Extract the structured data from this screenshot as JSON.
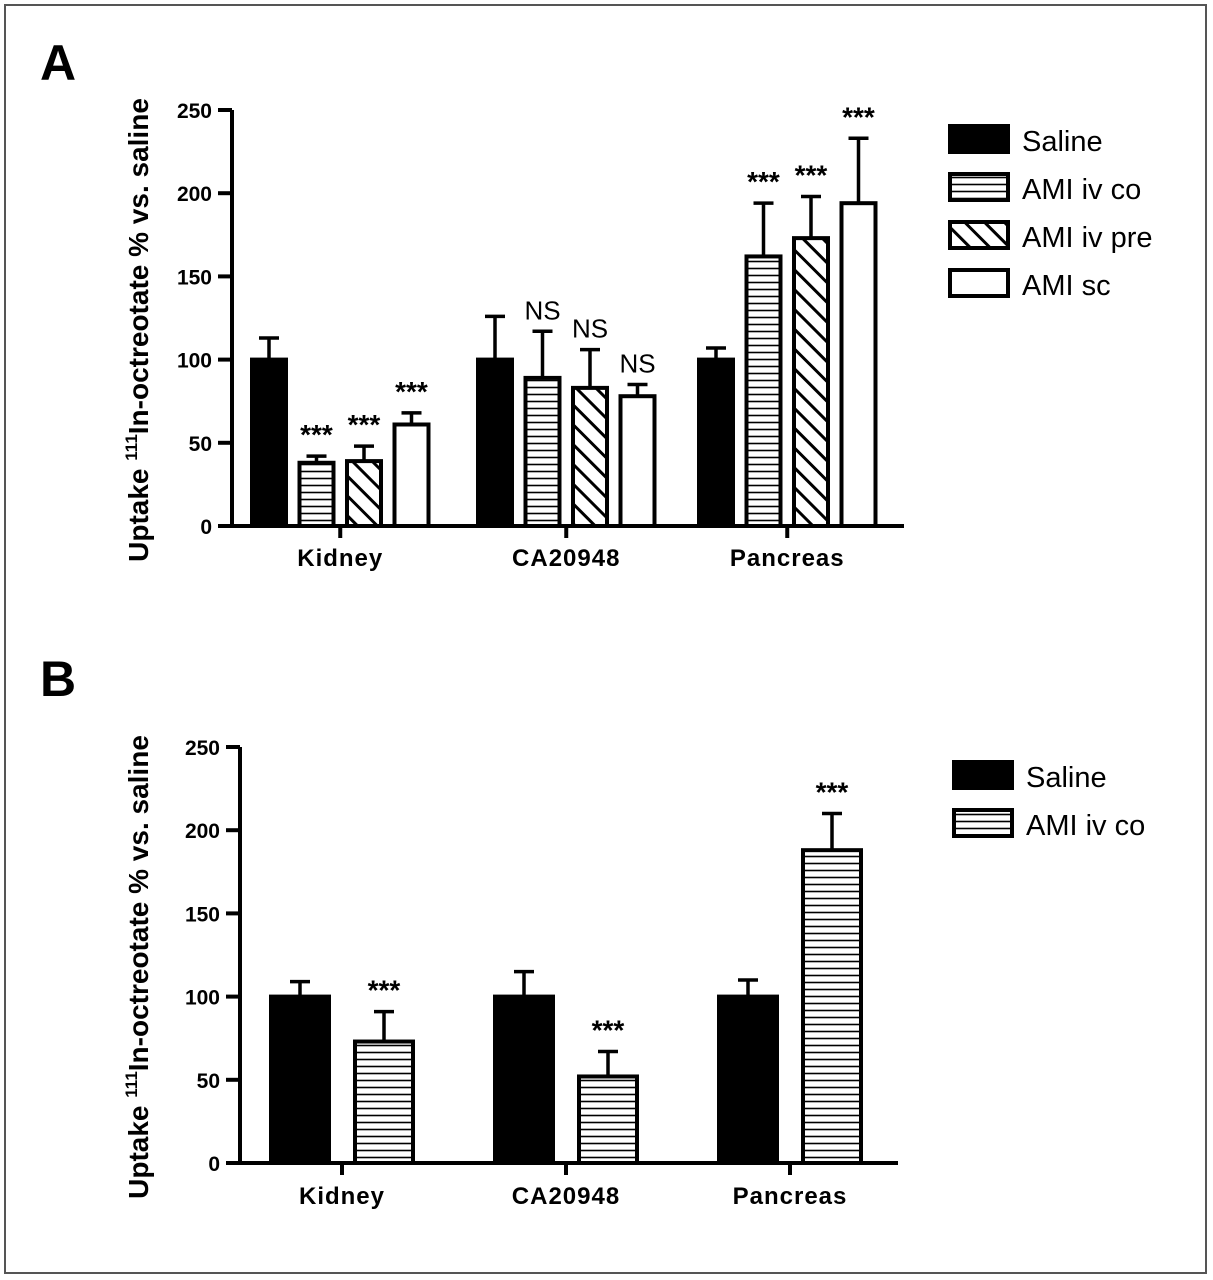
{
  "chart_data": [
    {
      "type": "bar",
      "panel_label": "A",
      "ylabel_prefix": "Uptake ",
      "ylabel_sup": "111",
      "ylabel_main": "In-octreotate % vs. saline",
      "ylim": [
        0,
        250
      ],
      "yticks": [
        "0",
        "50",
        "100",
        "150",
        "200",
        "250"
      ],
      "categories": [
        "Kidney",
        "CA20948",
        "Pancreas"
      ],
      "legend_position": "right",
      "series": [
        {
          "name": "Saline",
          "pattern": "solid",
          "values": [
            100,
            100,
            100
          ],
          "errors": [
            13,
            26,
            7
          ],
          "annotations": [
            "",
            "",
            ""
          ]
        },
        {
          "name": "AMI iv co",
          "pattern": "horizontal-lines",
          "values": [
            38,
            89,
            162
          ],
          "errors": [
            4,
            28,
            32
          ],
          "annotations": [
            "***",
            "NS",
            "***"
          ]
        },
        {
          "name": "AMI iv pre",
          "pattern": "diagonal-lines",
          "values": [
            39,
            83,
            173
          ],
          "errors": [
            9,
            23,
            25
          ],
          "annotations": [
            "***",
            "NS",
            "***"
          ]
        },
        {
          "name": "AMI sc",
          "pattern": "open",
          "values": [
            61,
            78,
            194
          ],
          "errors": [
            7,
            7,
            39
          ],
          "annotations": [
            "***",
            "NS",
            "***"
          ]
        }
      ]
    },
    {
      "type": "bar",
      "panel_label": "B",
      "ylabel_prefix": "Uptake ",
      "ylabel_sup": "111",
      "ylabel_main": "In-octreotate % vs. saline",
      "ylim": [
        0,
        250
      ],
      "yticks": [
        "0",
        "50",
        "100",
        "150",
        "200",
        "250"
      ],
      "categories": [
        "Kidney",
        "CA20948",
        "Pancreas"
      ],
      "legend_position": "right",
      "series": [
        {
          "name": "Saline",
          "pattern": "solid",
          "values": [
            100,
            100,
            100
          ],
          "errors": [
            9,
            15,
            10
          ],
          "annotations": [
            "",
            "",
            ""
          ]
        },
        {
          "name": "AMI iv co",
          "pattern": "horizontal-lines",
          "values": [
            73,
            52,
            188
          ],
          "errors": [
            18,
            15,
            22
          ],
          "annotations": [
            "***",
            "***",
            "***"
          ]
        }
      ]
    }
  ]
}
